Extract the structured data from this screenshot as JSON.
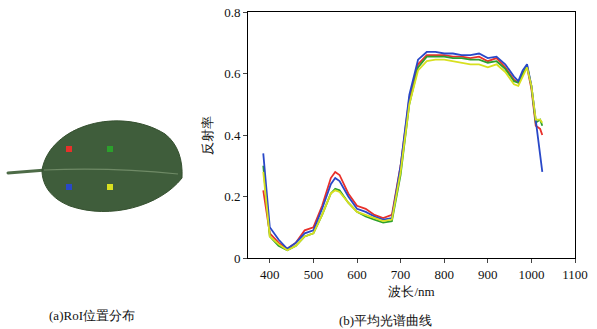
{
  "image_panel": {
    "caption": "(a)RoI位置分布"
  },
  "chart_data": {
    "type": "line",
    "caption": "(b)平均光谱曲线",
    "x_label": "波长/nm",
    "y_label": "反射率",
    "xlim": [
      350,
      1100
    ],
    "xticks": [
      400,
      500,
      600,
      700,
      800,
      900,
      1000,
      1100
    ],
    "ylim": [
      0,
      0.8
    ],
    "yticks": [
      0,
      0.2,
      0.4,
      0.6,
      0.8
    ],
    "grid": false,
    "x": [
      385,
      400,
      420,
      440,
      460,
      480,
      500,
      520,
      540,
      550,
      560,
      580,
      600,
      620,
      640,
      660,
      680,
      700,
      720,
      740,
      760,
      780,
      800,
      820,
      840,
      860,
      880,
      900,
      920,
      940,
      960,
      970,
      980,
      990,
      1000,
      1010,
      1020,
      1025
    ],
    "series": [
      {
        "color": "#e8302a",
        "values": [
          0.22,
          0.08,
          0.05,
          0.03,
          0.05,
          0.09,
          0.1,
          0.17,
          0.26,
          0.28,
          0.27,
          0.21,
          0.17,
          0.16,
          0.14,
          0.13,
          0.14,
          0.3,
          0.52,
          0.63,
          0.66,
          0.66,
          0.66,
          0.655,
          0.655,
          0.65,
          0.655,
          0.64,
          0.65,
          0.62,
          0.58,
          0.57,
          0.6,
          0.62,
          0.55,
          0.43,
          0.42,
          0.4
        ]
      },
      {
        "color": "#2ca02c",
        "values": [
          0.3,
          0.07,
          0.04,
          0.025,
          0.04,
          0.07,
          0.08,
          0.14,
          0.21,
          0.225,
          0.22,
          0.18,
          0.15,
          0.135,
          0.125,
          0.115,
          0.12,
          0.27,
          0.5,
          0.62,
          0.655,
          0.655,
          0.655,
          0.65,
          0.65,
          0.645,
          0.645,
          0.635,
          0.64,
          0.615,
          0.575,
          0.57,
          0.6,
          0.625,
          0.56,
          0.44,
          0.45,
          0.43
        ]
      },
      {
        "color": "#2948c8",
        "values": [
          0.34,
          0.1,
          0.06,
          0.03,
          0.05,
          0.08,
          0.09,
          0.16,
          0.24,
          0.26,
          0.25,
          0.2,
          0.16,
          0.15,
          0.135,
          0.125,
          0.13,
          0.3,
          0.53,
          0.645,
          0.67,
          0.67,
          0.665,
          0.665,
          0.66,
          0.66,
          0.665,
          0.65,
          0.655,
          0.63,
          0.59,
          0.575,
          0.61,
          0.63,
          0.56,
          0.44,
          0.34,
          0.28
        ]
      },
      {
        "color": "#d8e020",
        "values": [
          0.28,
          0.07,
          0.045,
          0.025,
          0.04,
          0.07,
          0.08,
          0.14,
          0.21,
          0.22,
          0.215,
          0.18,
          0.15,
          0.14,
          0.13,
          0.12,
          0.125,
          0.28,
          0.5,
          0.61,
          0.64,
          0.645,
          0.645,
          0.64,
          0.635,
          0.63,
          0.63,
          0.62,
          0.63,
          0.605,
          0.565,
          0.56,
          0.59,
          0.62,
          0.56,
          0.45,
          0.45,
          0.44
        ]
      }
    ]
  }
}
